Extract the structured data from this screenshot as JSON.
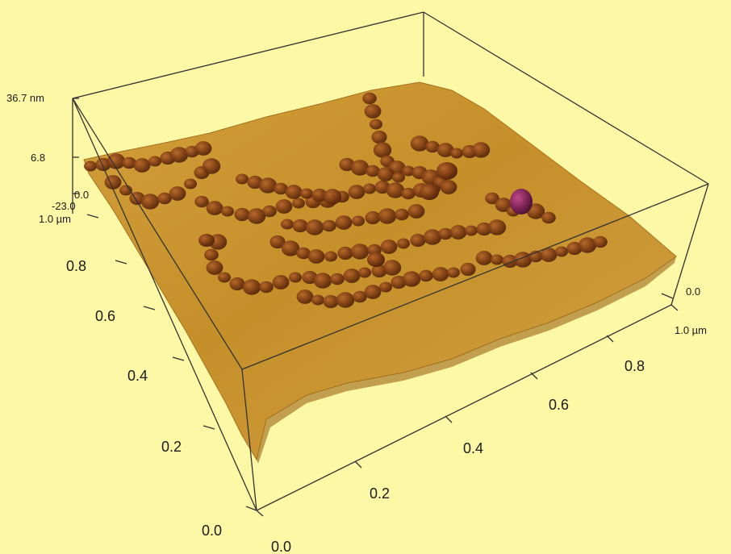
{
  "colors": {
    "background": "#fdf8a6",
    "surface_base": "#c8901f",
    "surface_highlight": "#e2b04a",
    "particle": "#7a3a12",
    "particle_peak": "#8a2a5a",
    "box_line": "#333333"
  },
  "z_axis": {
    "ticks": [
      "36.7 nm",
      "6.8",
      "0.0",
      "-23.0"
    ]
  },
  "y_axis": {
    "ticks": [
      "1.0 µm",
      "0.8",
      "0.6",
      "0.4",
      "0.2",
      "0.0"
    ]
  },
  "x_axis": {
    "ticks": [
      "0.0",
      "0.2",
      "0.4",
      "0.6",
      "0.8",
      "1.0 µm"
    ]
  },
  "right_axis": {
    "ticks": [
      "0.0",
      "1.0 µm"
    ]
  }
}
